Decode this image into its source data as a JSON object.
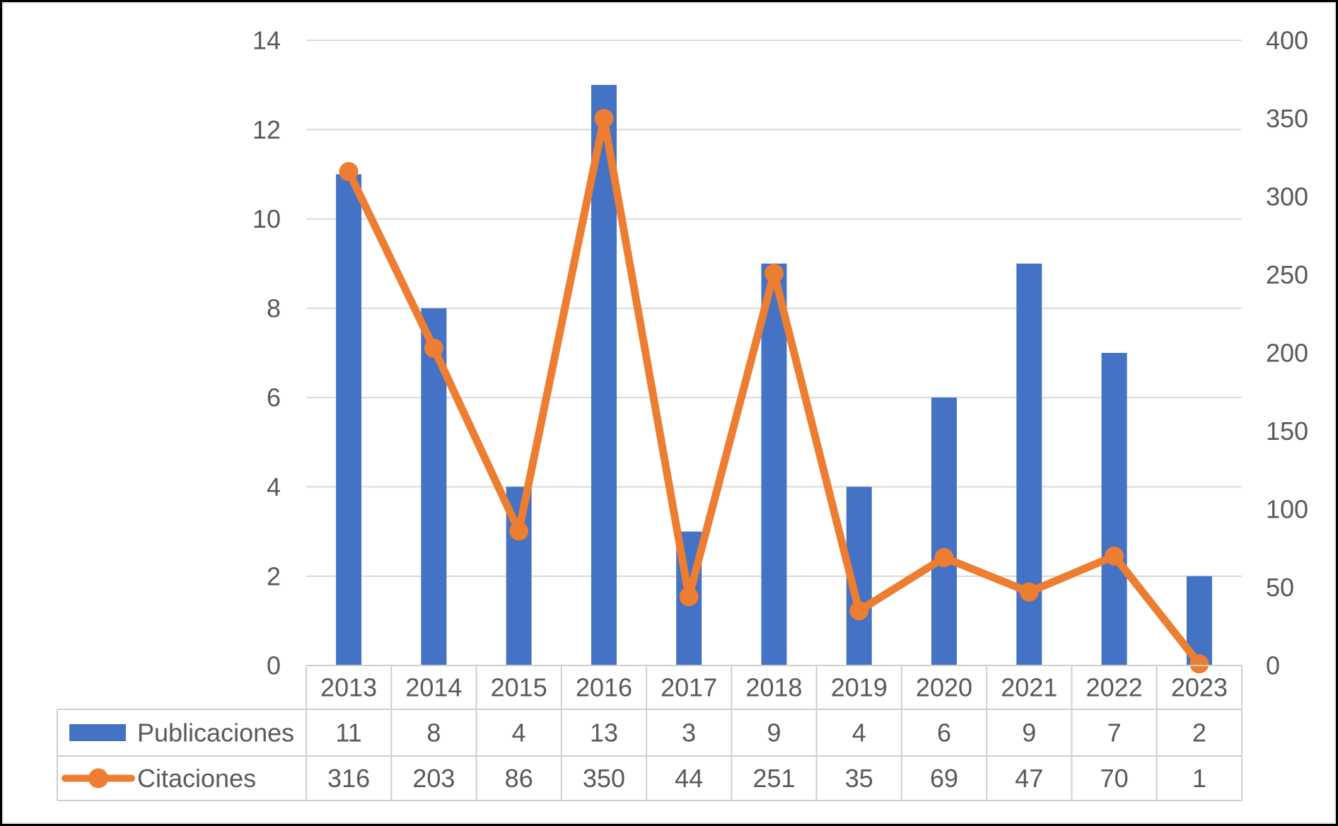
{
  "chart_data": {
    "type": "combo-bar-line",
    "title": "",
    "categories": [
      "2013",
      "2014",
      "2015",
      "2016",
      "2017",
      "2018",
      "2019",
      "2020",
      "2021",
      "2022",
      "2023"
    ],
    "series": [
      {
        "name": "Publicaciones",
        "type": "bar",
        "axis": "primary",
        "color": "#4472C4",
        "values": [
          11,
          8,
          4,
          13,
          3,
          9,
          4,
          6,
          9,
          7,
          2
        ]
      },
      {
        "name": "Citaciones",
        "type": "line",
        "axis": "secondary",
        "color": "#ED7D31",
        "values": [
          316,
          203,
          86,
          350,
          44,
          251,
          35,
          69,
          47,
          70,
          1
        ]
      }
    ],
    "primary_axis": {
      "min": 0,
      "max": 14,
      "step": 2,
      "tick_labels": [
        "0",
        "2",
        "4",
        "6",
        "8",
        "10",
        "12",
        "14"
      ]
    },
    "secondary_axis": {
      "min": 0,
      "max": 400,
      "step": 50,
      "tick_labels": [
        "0",
        "50",
        "100",
        "150",
        "200",
        "250",
        "300",
        "350",
        "400"
      ]
    },
    "gridlines": "horizontal",
    "legend_position": "data-table-left"
  },
  "colors": {
    "grid": "#D9D9D9",
    "table_border": "#CFCFCF",
    "text": "#595959",
    "frame": "#000000",
    "surface": "#FFFFFF"
  }
}
